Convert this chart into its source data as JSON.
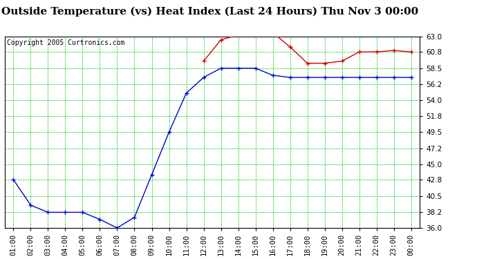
{
  "title": "Outside Temperature (vs) Heat Index (Last 24 Hours) Thu Nov 3 00:00",
  "copyright": "Copyright 2005 Curtronics.com",
  "x_labels": [
    "01:00",
    "02:00",
    "03:00",
    "04:00",
    "05:00",
    "06:00",
    "07:00",
    "08:00",
    "09:00",
    "10:00",
    "11:00",
    "12:00",
    "13:00",
    "14:00",
    "15:00",
    "16:00",
    "17:00",
    "18:00",
    "19:00",
    "20:00",
    "21:00",
    "22:00",
    "23:00",
    "00:00"
  ],
  "blue_data": [
    42.8,
    39.2,
    38.2,
    38.2,
    38.2,
    37.2,
    36.0,
    37.5,
    43.5,
    49.5,
    55.0,
    57.2,
    58.5,
    58.5,
    58.5,
    57.5,
    57.2,
    57.2,
    57.2,
    57.2,
    57.2,
    57.2,
    57.2,
    57.2
  ],
  "red_data": [
    null,
    null,
    null,
    null,
    null,
    null,
    null,
    null,
    null,
    null,
    null,
    59.5,
    62.5,
    63.2,
    63.5,
    63.5,
    61.5,
    59.2,
    59.2,
    59.5,
    60.8,
    60.8,
    61.0,
    60.8
  ],
  "ylim_min": 36.0,
  "ylim_max": 63.0,
  "yticks": [
    36.0,
    38.2,
    40.5,
    42.8,
    45.0,
    47.2,
    49.5,
    51.8,
    54.0,
    56.2,
    58.5,
    60.8,
    63.0
  ],
  "blue_color": "#0000cc",
  "red_color": "#cc0000",
  "bg_color": "#ffffff",
  "plot_bg_color": "#ffffff",
  "grid_color": "#00cc00",
  "title_fontsize": 11,
  "copyright_fontsize": 7,
  "tick_fontsize": 7.5
}
